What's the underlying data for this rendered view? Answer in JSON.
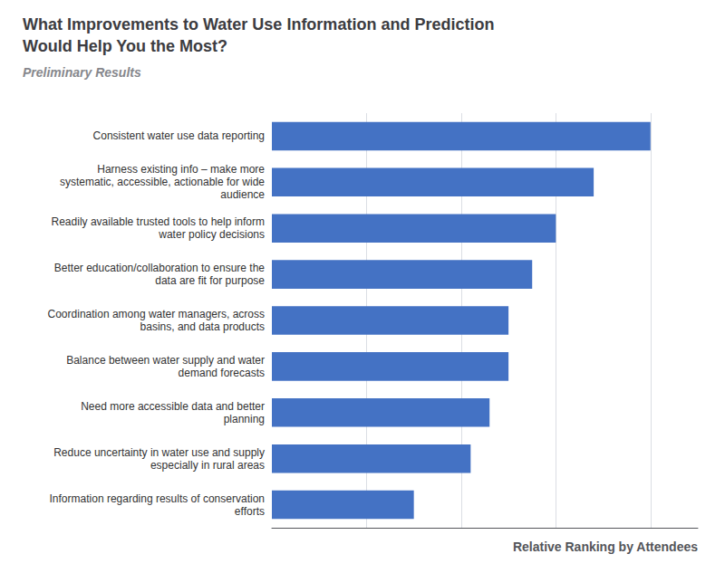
{
  "chart_data": {
    "type": "bar",
    "orientation": "horizontal",
    "title": "What Improvements to Water Use Information and Prediction\nWould Help You the Most?",
    "subtitle": "Preliminary Results",
    "xlabel": "Relative Ranking by Attendees",
    "categories": [
      "Information regarding results of conservation\nefforts",
      "Reduce uncertainty in water use and supply\nespecially in rural areas",
      "Need more accessible data and better\nplanning",
      "Balance between water supply and water\ndemand forecasts",
      "Coordination among water managers, across\nbasins, and data products",
      "Better education/collaboration to ensure the\ndata are fit for purpose",
      "Readily available trusted tools to help inform\nwater policy decisions",
      "Harness existing info – make more\nsystematic, accessible, actionable for wide\naudience",
      "Consistent water use data reporting"
    ],
    "values": [
      3.0,
      4.2,
      4.6,
      5.0,
      5.0,
      5.5,
      6.0,
      6.8,
      8.0
    ],
    "color": "#4472C4",
    "xlim": [
      0,
      9.0
    ],
    "xticks": [
      2,
      4,
      6,
      8
    ],
    "grid": true,
    "tick_labels": "y"
  }
}
